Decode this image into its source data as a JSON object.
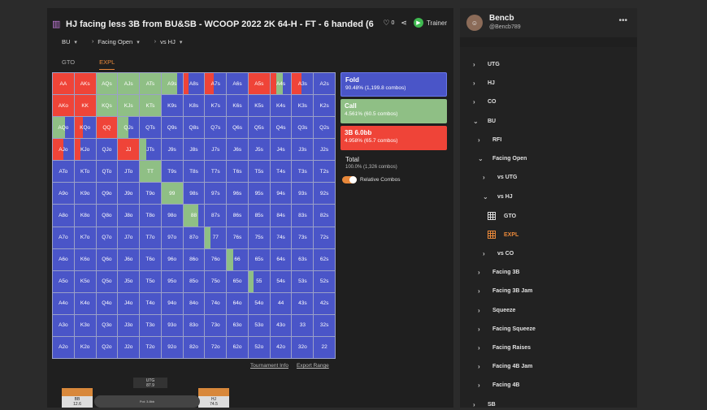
{
  "title": "HJ facing less 3B from BU&SB - WCOOP 2022 2K 64-H - FT - 6 handed (6",
  "header_actions": {
    "likes": "0",
    "trainer_label": "Trainer"
  },
  "filters": [
    {
      "label": "BU"
    },
    {
      "label": "Facing Open"
    },
    {
      "label": "vs HJ"
    }
  ],
  "tabs": [
    {
      "label": "GTO",
      "active": false
    },
    {
      "label": "EXPL",
      "active": true
    }
  ],
  "colors": {
    "fold": "#4a55c8",
    "call": "#8fbf85",
    "raise": "#ef4438",
    "accent": "#e8883a"
  },
  "hands": [
    [
      "AA",
      "AKs",
      "AQs",
      "AJs",
      "ATs",
      "A9s",
      "A8s",
      "A7s",
      "A6s",
      "A5s",
      "A4s",
      "A3s",
      "A2s"
    ],
    [
      "AKo",
      "KK",
      "KQs",
      "KJs",
      "KTs",
      "K9s",
      "K8s",
      "K7s",
      "K6s",
      "K5s",
      "K4s",
      "K3s",
      "K2s"
    ],
    [
      "AQo",
      "KQo",
      "QQ",
      "QJs",
      "QTs",
      "Q9s",
      "Q8s",
      "Q7s",
      "Q6s",
      "Q5s",
      "Q4s",
      "Q3s",
      "Q2s"
    ],
    [
      "AJo",
      "KJo",
      "QJo",
      "JJ",
      "JTs",
      "J9s",
      "J8s",
      "J7s",
      "J6s",
      "J5s",
      "J4s",
      "J3s",
      "J2s"
    ],
    [
      "ATo",
      "KTo",
      "QTo",
      "JTo",
      "TT",
      "T9s",
      "T8s",
      "T7s",
      "T6s",
      "T5s",
      "T4s",
      "T3s",
      "T2s"
    ],
    [
      "A9o",
      "K9o",
      "Q9o",
      "J9o",
      "T9o",
      "99",
      "98s",
      "97s",
      "96s",
      "95s",
      "94s",
      "93s",
      "92s"
    ],
    [
      "A8o",
      "K8o",
      "Q8o",
      "J8o",
      "T8o",
      "98o",
      "88",
      "87s",
      "86s",
      "85s",
      "84s",
      "83s",
      "82s"
    ],
    [
      "A7o",
      "K7o",
      "Q7o",
      "J7o",
      "T7o",
      "97o",
      "87o",
      "77",
      "76s",
      "75s",
      "74s",
      "73s",
      "72s"
    ],
    [
      "A6o",
      "K6o",
      "Q6o",
      "J6o",
      "T6o",
      "96o",
      "86o",
      "76o",
      "66",
      "65s",
      "64s",
      "63s",
      "62s"
    ],
    [
      "A5o",
      "K5o",
      "Q5o",
      "J5o",
      "T5o",
      "95o",
      "85o",
      "75o",
      "65o",
      "55",
      "54s",
      "53s",
      "52s"
    ],
    [
      "A4o",
      "K4o",
      "Q4o",
      "J4o",
      "T4o",
      "94o",
      "84o",
      "74o",
      "64o",
      "54o",
      "44",
      "43s",
      "42s"
    ],
    [
      "A3o",
      "K3o",
      "Q3o",
      "J3o",
      "T3o",
      "93o",
      "83o",
      "73o",
      "63o",
      "53o",
      "43o",
      "33",
      "32s"
    ],
    [
      "A2o",
      "K2o",
      "Q2o",
      "J2o",
      "T2o",
      "92o",
      "82o",
      "72o",
      "62o",
      "52o",
      "42o",
      "32o",
      "22"
    ]
  ],
  "hand_strategy": {
    "AA": {
      "raise": 1.0
    },
    "AKs": {
      "raise": 1.0
    },
    "AQs": {
      "call": 1.0
    },
    "AJs": {
      "call": 1.0
    },
    "ATs": {
      "call": 1.0
    },
    "A9s": {
      "fold": 0.25,
      "call": 0.75
    },
    "A8s": {
      "fold": 0.75,
      "raise": 0.25
    },
    "A7s": {
      "fold": 0.6,
      "raise": 0.4
    },
    "A5s": {
      "raise": 1.0
    },
    "A4s": {
      "fold": 0.4,
      "call": 0.3,
      "raise": 0.3
    },
    "A3s": {
      "fold": 0.55,
      "raise": 0.45
    },
    "AKo": {
      "raise": 1.0
    },
    "KK": {
      "raise": 1.0
    },
    "KQs": {
      "call": 1.0
    },
    "KJs": {
      "call": 1.0
    },
    "KTs": {
      "call": 1.0
    },
    "AQo": {
      "call": 0.6,
      "fold": 0.4
    },
    "KQo": {
      "raise": 0.4,
      "fold": 0.6
    },
    "QQ": {
      "raise": 1.0
    },
    "QJs": {
      "call": 0.5,
      "fold": 0.5
    },
    "AJo": {
      "fold": 0.5,
      "raise": 0.5
    },
    "KJo": {
      "raise": 0.3,
      "fold": 0.7
    },
    "JJ": {
      "raise": 1.0
    },
    "JTs": {
      "call": 0.3,
      "fold": 0.7
    },
    "TT": {
      "call": 1.0
    },
    "99": {
      "call": 1.0
    },
    "88": {
      "fold": 0.3,
      "call": 0.7
    },
    "77": {
      "fold": 0.75,
      "call": 0.25
    },
    "66": {
      "fold": 0.7,
      "call": 0.3
    },
    "55": {
      "fold": 0.75,
      "call": 0.25
    }
  },
  "actions": [
    {
      "key": "fold",
      "name": "Fold",
      "pct": "90.48% (1,199.8 combos)"
    },
    {
      "key": "call",
      "name": "Call",
      "pct": "4.561% (60.5 combos)"
    },
    {
      "key": "raise",
      "name": "3B 6.0bb",
      "pct": "4.958% (65.7 combos)"
    }
  ],
  "total": {
    "label": "Total",
    "pct": "100.0% (1,326 combos)"
  },
  "toggle_label": "Relative Combos",
  "grid_links": {
    "tournament": "Tournament Info",
    "export": "Export Range"
  },
  "table": {
    "utg": {
      "name": "UTG",
      "stack": "87.9"
    },
    "bb": {
      "name": "BB",
      "stack": "12.6"
    },
    "hj": {
      "name": "HJ",
      "stack": "74.5"
    },
    "pot": "Pot: 3.8bb"
  },
  "user": {
    "name": "Bencb",
    "handle": "@Bencb789"
  },
  "tree": [
    {
      "label": "UTG",
      "indent": 0,
      "arrow": "right",
      "top": 64
    },
    {
      "label": "HJ",
      "indent": 0,
      "arrow": "right",
      "top": 87
    },
    {
      "label": "CO",
      "indent": 0,
      "arrow": "right",
      "top": 110
    },
    {
      "label": "BU",
      "indent": 0,
      "arrow": "down",
      "top": 134
    },
    {
      "label": "RFI",
      "indent": 1,
      "arrow": "right",
      "top": 157
    },
    {
      "label": "Facing Open",
      "indent": 1,
      "arrow": "down",
      "top": 180
    },
    {
      "label": "vs UTG",
      "indent": 2,
      "arrow": "right",
      "top": 203
    },
    {
      "label": "vs HJ",
      "indent": 2,
      "arrow": "down",
      "top": 227
    },
    {
      "label": "GTO",
      "indent": 3,
      "arrow": "grid",
      "top": 250
    },
    {
      "label": "EXPL",
      "indent": 3,
      "arrow": "grid",
      "top": 273,
      "active": true
    },
    {
      "label": "vs CO",
      "indent": 2,
      "arrow": "right",
      "top": 297
    },
    {
      "label": "Facing 3B",
      "indent": 1,
      "arrow": "right",
      "top": 320
    },
    {
      "label": "Facing 3B Jam",
      "indent": 1,
      "arrow": "right",
      "top": 343
    },
    {
      "label": "Squeeze",
      "indent": 1,
      "arrow": "right",
      "top": 367
    },
    {
      "label": "Facing Squeeze",
      "indent": 1,
      "arrow": "right",
      "top": 390
    },
    {
      "label": "Facing Raises",
      "indent": 1,
      "arrow": "right",
      "top": 413
    },
    {
      "label": "Facing 4B Jam",
      "indent": 1,
      "arrow": "right",
      "top": 436
    },
    {
      "label": "Facing 4B",
      "indent": 1,
      "arrow": "right",
      "top": 459
    },
    {
      "label": "SB",
      "indent": 0,
      "arrow": "right",
      "top": 483
    }
  ]
}
